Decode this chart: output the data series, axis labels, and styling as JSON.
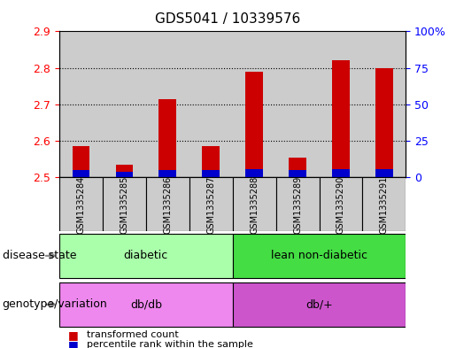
{
  "title": "GDS5041 / 10339576",
  "samples": [
    "GSM1335284",
    "GSM1335285",
    "GSM1335286",
    "GSM1335287",
    "GSM1335288",
    "GSM1335289",
    "GSM1335290",
    "GSM1335291"
  ],
  "transformed_counts": [
    2.585,
    2.535,
    2.715,
    2.585,
    2.79,
    2.555,
    2.82,
    2.8
  ],
  "percentile_ranks": [
    5,
    4,
    5,
    5,
    6,
    5,
    6,
    6
  ],
  "ylim_left": [
    2.5,
    2.9
  ],
  "ylim_right": [
    0,
    100
  ],
  "yticks_left": [
    2.5,
    2.6,
    2.7,
    2.8,
    2.9
  ],
  "yticks_right": [
    0,
    25,
    50,
    75,
    100
  ],
  "ytick_labels_right": [
    "0",
    "25",
    "50",
    "75",
    "100%"
  ],
  "bar_color_red": "#cc0000",
  "bar_color_blue": "#0000cc",
  "baseline": 2.5,
  "disease_state_groups": [
    {
      "label": "diabetic",
      "start": 0,
      "end": 4,
      "color": "#aaffaa"
    },
    {
      "label": "lean non-diabetic",
      "start": 4,
      "end": 8,
      "color": "#44dd44"
    }
  ],
  "genotype_groups": [
    {
      "label": "db/db",
      "start": 0,
      "end": 4,
      "color": "#ee88ee"
    },
    {
      "label": "db/+",
      "start": 4,
      "end": 8,
      "color": "#cc55cc"
    }
  ],
  "disease_state_label": "disease state",
  "genotype_label": "genotype/variation",
  "legend_items": [
    {
      "label": "transformed count",
      "color": "#cc0000"
    },
    {
      "label": "percentile rank within the sample",
      "color": "#0000cc"
    }
  ],
  "sample_bg_color": "#cccccc",
  "plot_bg_color": "#ffffff",
  "title_fontsize": 11,
  "tick_fontsize": 9,
  "label_fontsize": 9,
  "bar_width": 0.4
}
